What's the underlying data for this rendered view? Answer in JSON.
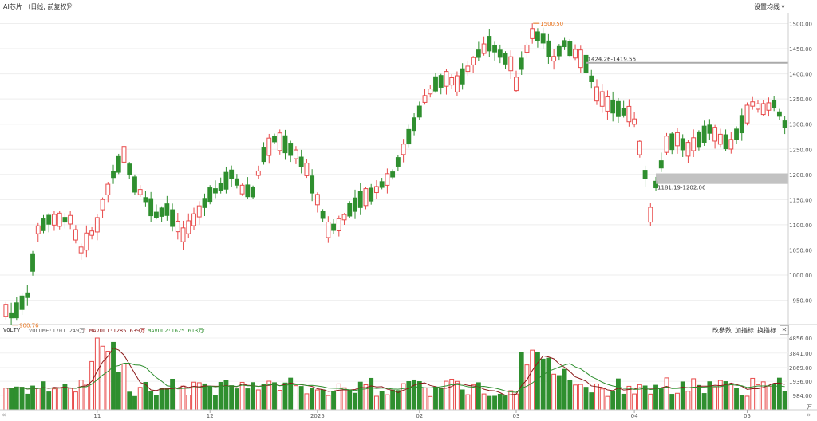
{
  "header": {
    "title": "AI芯片 （日线, 前复权）",
    "ma_setting": "设置均线 ▾"
  },
  "volume_header": {
    "indicator": "VOLTV",
    "volume": "VOLUME:1701.249万",
    "mavol1": "MAVOL1:1285.639万",
    "mavol2": "MAVOL2:1625.613万",
    "buttons": [
      "改参数",
      "加指标",
      "换指标"
    ]
  },
  "colors": {
    "up": "#e84b4b",
    "down": "#2f8f2f",
    "ma1": "#8b1a1a",
    "ma2": "#2f8f2f"
  },
  "chart_data": [
    {
      "type": "candlestick",
      "y_ticks": [
        1500,
        1450,
        1400,
        1350,
        1300,
        1250,
        1200,
        1150,
        1100,
        1050,
        1000,
        950
      ],
      "y_tick_labels": [
        "1500.00",
        "1450.00",
        "1400.00",
        "1350.00",
        "1300.00",
        "1250.00",
        "1200.00",
        "1150.00",
        "1100.00",
        "1050.00",
        "1000.00",
        "950.00"
      ],
      "ylim": [
        905,
        1515
      ],
      "x_tick_labels": [
        {
          "label": "11",
          "bar": 17
        },
        {
          "label": "12",
          "bar": 38
        },
        {
          "label": "2025",
          "bar": 58
        },
        {
          "label": "02",
          "bar": 77
        },
        {
          "label": "03",
          "bar": 95
        },
        {
          "label": "04",
          "bar": 117
        },
        {
          "label": "05",
          "bar": 138
        }
      ],
      "annotations": [
        {
          "text": "900.76",
          "bar": 1,
          "value": 900.76
        },
        {
          "text": "1500.50",
          "bar": 98,
          "value": 1500.5
        },
        {
          "text": "1424.26-1419.56",
          "bar": 108,
          "value": 1422,
          "line": true
        },
        {
          "text": "1181.19-1202.06",
          "bar": 121,
          "value_low": 1181.19,
          "value_high": 1202.06,
          "gap": true
        }
      ],
      "ohlc": []
    },
    {
      "type": "bar",
      "name": "volume",
      "y_tick_labels": [
        "4856.00",
        "3841.00",
        "2869.00",
        "1936.00",
        "984.00",
        "万"
      ],
      "y_ticks": [
        4856,
        3841,
        2869,
        1936,
        984,
        0
      ],
      "ylim": [
        0,
        4856
      ],
      "values": [],
      "mavol1": [],
      "mavol2": []
    }
  ]
}
